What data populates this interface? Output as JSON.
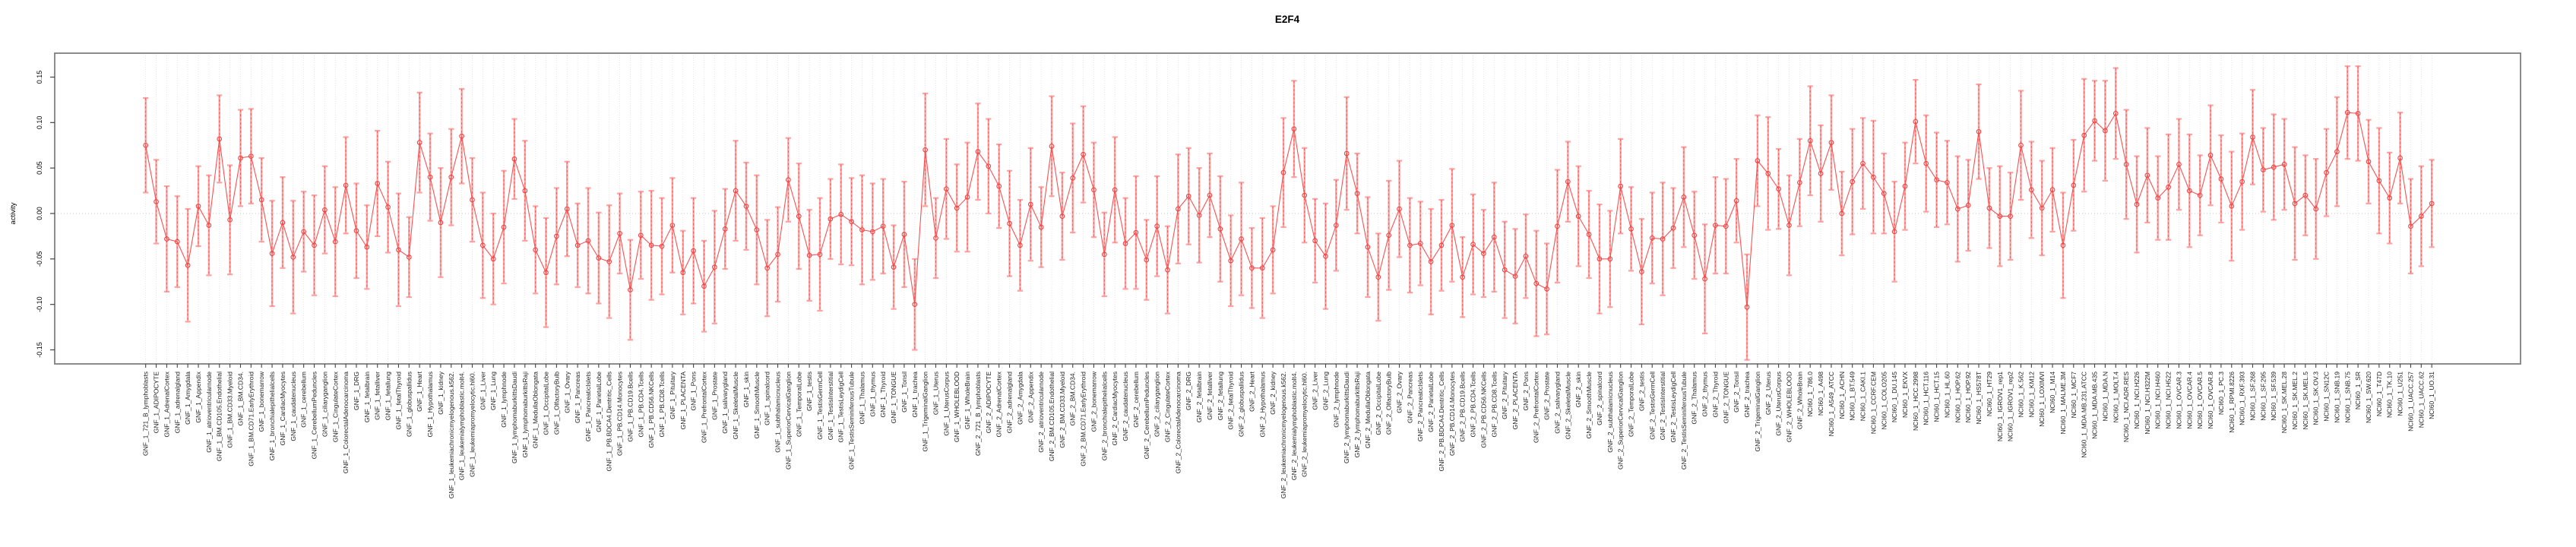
{
  "page": {
    "background": "#ffffff"
  },
  "chart_data": {
    "type": "line",
    "subtype": "line-with-error-bars",
    "title": "E2F4",
    "ylabel": "activity",
    "xlabel": "",
    "legend": "none",
    "grid": "vertical dotted gridline at every category; horizontal dotted line at 0",
    "ylim": [
      -0.166,
      0.174
    ],
    "yticks": [
      "-0.15",
      "-0.10",
      "-0.05",
      "0.00",
      "0.05",
      "0.10",
      "0.15"
    ],
    "ytick_values": [
      -0.15,
      -0.1,
      -0.05,
      0.0,
      0.05,
      0.1,
      0.15
    ],
    "colors": {
      "point": "#f24141",
      "line": "#f75252",
      "error_bar": "#ffa2a2",
      "grid": "#dddddd",
      "zero_line": "#c8c8c8",
      "box": "#7f7f7f",
      "tick": "#444444",
      "label": "#1f1f1f"
    },
    "categories": [
      "GNF_1_721_B_lymphoblasts",
      "GNF_1_ADIPOCYTE",
      "GNF_1_AdrenalCortex",
      "GNF_1_adrenalgland",
      "GNF_1_Amygdala",
      "GNF_1_Appendix",
      "GNF_1_atrioventricularnode",
      "GNF_1_BM.CD105.Endothelial",
      "GNF_1_BM.CD33.Myeloid",
      "GNF_1_BM.CD34.",
      "GNF_1_BM.CD71.EarlyErythroid",
      "GNF_1_bonemarrow",
      "GNF_1_bronchialepithelialcells",
      "GNF_1_CardiacMyocytes",
      "GNF_1_caudatenucleus",
      "GNF_1_cerebellum",
      "GNF_1_CerebellumPeduncles",
      "GNF_1_ciliaryganglion",
      "GNF_1_CingulateCortex",
      "GNF_1_ColorectalAdenocarcinoma",
      "GNF_1_DRG",
      "GNF_1_fetalbrain",
      "GNF_1_fetalliver",
      "GNF_1_fetallung",
      "GNF_1_fetalThyroid",
      "GNF_1_globuspallidus",
      "GNF_1_Heart",
      "GNF_1_Hypothalamus",
      "GNF_1_kidney",
      "GNF_1_leukemiachronicmyelogenous.k562.",
      "GNF_1_leukemialymphoblastic.molt4.",
      "GNF_1_leukemiapromyelocytic.hl60.",
      "GNF_1_Liver",
      "GNF_1_Lung",
      "GNF_1_lymphnode",
      "GNF_1_lymphomaburkittsDaudi",
      "GNF_1_lymphomaburkittsRaji",
      "GNF_1_MedullaOblongata",
      "GNF_1_OccipitalLobe",
      "GNF_1_OlfactoryBulb",
      "GNF_1_Ovary",
      "GNF_1_Pancreas",
      "GNF_1_PancreaticIslets",
      "GNF_1_ParietalLobe",
      "GNF_1_PB.BDCA4.Dentritic_Cells",
      "GNF_1_PB.CD14.Monocytes",
      "GNF_1_PB.CD19.Bcells",
      "GNF_1_PB.CD4.Tcells",
      "GNF_1_PB.CD56.NKCells",
      "GNF_1_PB.CD8.Tcells",
      "GNF_1_Pituitary",
      "GNF_1_PLACENTA",
      "GNF_1_Pons",
      "GNF_1_PrefrontalCortex",
      "GNF_1_Prostate",
      "GNF_1_salivarygland",
      "GNF_1_SkeletalMuscle",
      "GNF_1_skin",
      "GNF_1_SmoothMuscle",
      "GNF_1_spinalcord",
      "GNF_1_subthalamicnucleus",
      "GNF_1_SuperiorCervicalGanglion",
      "GNF_1_TemporalLobe",
      "GNF_1_testis",
      "GNF_1_TestisGermCell",
      "GNF_1_TestisInterstitial",
      "GNF_1_TestisLeydigCell",
      "GNF_1_TestisSeminiferousTubule",
      "GNF_1_Thalamus",
      "GNF_1_thymus",
      "GNF_1_Thyroid",
      "GNF_1_TONGUE",
      "GNF_1_Tonsil",
      "GNF_1_trachea",
      "GNF_1_TrigeminalGanglion",
      "GNF_1_Uterus",
      "GNF_1_UterusCorpus",
      "GNF_1_WHOLEBLOOD",
      "GNF_1_WholeBrain",
      "GNF_2_721_B_lymphoblasts",
      "GNF_2_ADIPOCYTE",
      "GNF_2_AdrenalCortex",
      "GNF_2_adrenalgland",
      "GNF_2_Amygdala",
      "GNF_2_Appendix",
      "GNF_2_atrioventricularnode",
      "GNF_2_BM.CD105.Endothelial",
      "GNF_2_BM.CD33.Myeloid",
      "GNF_2_BM.CD34.",
      "GNF_2_BM.CD71.EarlyErythroid",
      "GNF_2_bonemarrow",
      "GNF_2_bronchialepithelialcells",
      "GNF_2_CardiacMyocytes",
      "GNF_2_caudatenucleus",
      "GNF_2_cerebellum",
      "GNF_2_CerebellumPeduncles",
      "GNF_2_ciliaryganglion",
      "GNF_2_CingulateCortex",
      "GNF_2_ColorectalAdenocarcinoma",
      "GNF_2_DRG",
      "GNF_2_fetalbrain",
      "GNF_2_fetalliver",
      "GNF_2_fetallung",
      "GNF_2_fetalThyroid",
      "GNF_2_globuspallidus",
      "GNF_2_Heart",
      "GNF_2_Hypothalamus",
      "GNF_2_kidney",
      "GNF_2_leukemiachronicmyelogenous.k562.",
      "GNF_2_leukemialymphoblastic.molt4.",
      "GNF_2_leukemiapromyelocytic.hl60.",
      "GNF_2_Liver",
      "GNF_2_Lung",
      "GNF_2_lymphnode",
      "GNF_2_lymphomaburkittsDaudi",
      "GNF_2_lymphomaburkittsRaji",
      "GNF_2_MedullaOblongata",
      "GNF_2_OccipitalLobe",
      "GNF_2_OlfactoryBulb",
      "GNF_2_Ovary",
      "GNF_2_Pancreas",
      "GNF_2_PancreaticIslets",
      "GNF_2_ParietalLobe",
      "GNF_2_PB.BDCA4.Dentritic_Cells",
      "GNF_2_PB.CD14.Monocytes",
      "GNF_2_PB.CD19.Bcells",
      "GNF_2_PB.CD4.Tcells",
      "GNF_2_PB.CD56.NKCells",
      "GNF_2_PB.CD8.Tcells",
      "GNF_2_Pituitary",
      "GNF_2_PLACENTA",
      "GNF_2_Pons",
      "GNF_2_PrefrontalCortex",
      "GNF_2_Prostate",
      "GNF_2_salivarygland",
      "GNF_2_SkeletalMuscle",
      "GNF_2_skin",
      "GNF_2_SmoothMuscle",
      "GNF_2_spinalcord",
      "GNF_2_subthalamicnucleus",
      "GNF_2_SuperiorCervicalGanglion",
      "GNF_2_TemporalLobe",
      "GNF_2_testis",
      "GNF_2_TestisGermCell",
      "GNF_2_TestisInterstitial",
      "GNF_2_TestisLeydigCell",
      "GNF_2_TestisSeminiferousTubule",
      "GNF_2_Thalamus",
      "GNF_2_thymus",
      "GNF_2_Thyroid",
      "GNF_2_TONGUE",
      "GNF_2_Tonsil",
      "GNF_2_trachea",
      "GNF_2_TrigeminalGanglion",
      "GNF_2_Uterus",
      "GNF_2_UterusCorpus",
      "GNF_2_WHOLEBLOOD",
      "GNF_2_WholeBrain",
      "NCI60_1_786.0",
      "NCI60_1_A498",
      "NCI60_1_A549_ATCC",
      "NCI60_1_ACHN",
      "NCI60_1_BT.549",
      "NCI60_1_CAKI.1",
      "NCI60_1_CCRF.CEM",
      "NCI60_1_COLO205",
      "NCI60_1_DU.145",
      "NCI60_1_EKVX",
      "NCI60_1_HCC.2998",
      "NCI60_1_HCT.116",
      "NCI60_1_HCT.15",
      "NCI60_1_HL.60",
      "NCI60_1_HOP.62",
      "NCI60_1_HOP.92",
      "NCI60_1_HS578T",
      "NCI60_1_HT29",
      "NCI60_1_IGROV1_rep1",
      "NCI60_1_IGROV1_rep2",
      "NCI60_1_K.562",
      "NCI60_1_KM12",
      "NCI60_1_LOXIMVI",
      "NCI60_1_M14",
      "NCI60_1_MALME.3M",
      "NCI60_1_MCF7",
      "NCI60_1_MDA.MB.231.ATCC",
      "NCI60_1_MDA.MB.435",
      "NCI60_1_MDA.N",
      "NCI60_1_MOLT.4",
      "NCI60_1_NCI.ADR.RES",
      "NCI60_1_NCI.H226",
      "NCI60_1_NCI.H322M",
      "NCI60_1_NCI.H460",
      "NCI60_1_NCI.H522",
      "NCI60_1_OVCAR.3",
      "NCI60_1_OVCAR.4",
      "NCI60_1_OVCAR.5",
      "NCI60_1_OVCAR.8",
      "NCI60_1_PC.3",
      "NCI60_1_RPMI.8226",
      "NCI60_1_RXF.393",
      "NCI60_1_SF.268",
      "NCI60_1_SF.295",
      "NCI60_1_SF.539",
      "NCI60_1_SK.MEL.28",
      "NCI60_1_SK.MEL.2",
      "NCI60_1_SK.MEL.5",
      "NCI60_1_SK.OV.3",
      "NCI60_1_SN12C",
      "NCI60_1_SNB.19",
      "NCI60_1_SNB.75",
      "NCI60_1_SR",
      "NCI60_1_SW.620",
      "NCI60_1_T47D",
      "NCI60_1_TK.10",
      "NCI60_1_U251",
      "NCI60_1_UACC.257",
      "NCI60_1_UACC.62",
      "NCI60_1_UO.31"
    ],
    "values": [
      0.075,
      0.013,
      -0.028,
      -0.031,
      -0.057,
      0.008,
      -0.013,
      0.082,
      -0.007,
      0.061,
      0.063,
      0.015,
      -0.044,
      -0.01,
      -0.048,
      -0.02,
      -0.035,
      0.004,
      -0.031,
      0.031,
      -0.019,
      -0.037,
      0.033,
      0.007,
      -0.04,
      -0.048,
      0.078,
      0.04,
      -0.01,
      0.04,
      0.085,
      0.015,
      -0.035,
      -0.05,
      -0.015,
      0.06,
      0.025,
      -0.04,
      -0.065,
      -0.025,
      0.005,
      -0.035,
      -0.03,
      -0.049,
      -0.053,
      -0.022,
      -0.084,
      -0.024,
      -0.035,
      -0.036,
      -0.013,
      -0.065,
      -0.041,
      -0.08,
      -0.059,
      -0.017,
      0.025,
      0.008,
      -0.018,
      -0.06,
      -0.045,
      0.037,
      -0.003,
      -0.046,
      -0.045,
      -0.006,
      -0.001,
      -0.009,
      -0.018,
      -0.02,
      -0.014,
      -0.059,
      -0.023,
      -0.1,
      0.07,
      -0.027,
      0.027,
      0.006,
      0.018,
      0.068,
      0.052,
      0.03,
      -0.011,
      -0.035,
      0.01,
      -0.015,
      0.074,
      -0.003,
      0.039,
      0.065,
      0.026,
      -0.045,
      0.026,
      -0.033,
      -0.021,
      -0.051,
      -0.014,
      -0.062,
      0.005,
      0.019,
      -0.002,
      0.02,
      -0.017,
      -0.052,
      -0.028,
      -0.06,
      -0.06,
      -0.04,
      0.045,
      0.093,
      0.02,
      -0.03,
      -0.047,
      -0.013,
      0.066,
      0.022,
      -0.037,
      -0.07,
      -0.024,
      0.005,
      -0.035,
      -0.033,
      -0.053,
      -0.035,
      -0.013,
      -0.07,
      -0.034,
      -0.044,
      -0.026,
      -0.062,
      -0.069,
      -0.047,
      -0.077,
      -0.083,
      -0.014,
      0.035,
      -0.003,
      -0.023,
      -0.05,
      -0.05,
      0.03,
      -0.017,
      -0.064,
      -0.027,
      -0.028,
      -0.016,
      0.018,
      -0.024,
      -0.072,
      -0.013,
      -0.014,
      0.014,
      -0.103,
      0.058,
      0.044,
      0.027,
      -0.013,
      0.034,
      0.08,
      0.044,
      0.078,
      0.0,
      0.035,
      0.055,
      0.04,
      0.022,
      -0.02,
      0.03,
      0.101,
      0.055,
      0.037,
      0.034,
      0.005,
      0.009,
      0.09,
      0.006,
      -0.003,
      -0.003,
      0.075,
      0.026,
      0.006,
      0.026,
      -0.035,
      0.031,
      0.086,
      0.102,
      0.091,
      0.11,
      0.054,
      0.01,
      0.042,
      0.017,
      0.029,
      0.054,
      0.025,
      0.02,
      0.064,
      0.038,
      0.008,
      0.035,
      0.084,
      0.048,
      0.051,
      0.054,
      0.011,
      0.02,
      0.005,
      0.045,
      0.068,
      0.111,
      0.11,
      0.057,
      0.036,
      0.017,
      0.061,
      -0.014,
      -0.003,
      0.011
    ],
    "errors": [
      0.052,
      0.046,
      0.058,
      0.05,
      0.062,
      0.044,
      0.055,
      0.048,
      0.06,
      0.053,
      0.052,
      0.046,
      0.058,
      0.05,
      0.062,
      0.044,
      0.055,
      0.048,
      0.06,
      0.053,
      0.052,
      0.046,
      0.058,
      0.05,
      0.062,
      0.044,
      0.055,
      0.048,
      0.06,
      0.053,
      0.052,
      0.046,
      0.058,
      0.05,
      0.062,
      0.044,
      0.055,
      0.048,
      0.06,
      0.053,
      0.052,
      0.046,
      0.058,
      0.05,
      0.062,
      0.044,
      0.055,
      0.048,
      0.06,
      0.053,
      0.052,
      0.046,
      0.058,
      0.05,
      0.062,
      0.044,
      0.055,
      0.048,
      0.06,
      0.053,
      0.052,
      0.046,
      0.058,
      0.05,
      0.062,
      0.044,
      0.055,
      0.048,
      0.06,
      0.053,
      0.052,
      0.046,
      0.058,
      0.05,
      0.062,
      0.044,
      0.055,
      0.048,
      0.06,
      0.053,
      0.052,
      0.046,
      0.058,
      0.05,
      0.062,
      0.044,
      0.055,
      0.048,
      0.06,
      0.053,
      0.052,
      0.046,
      0.058,
      0.05,
      0.062,
      0.044,
      0.055,
      0.048,
      0.06,
      0.053,
      0.052,
      0.046,
      0.058,
      0.05,
      0.062,
      0.044,
      0.055,
      0.048,
      0.06,
      0.053,
      0.052,
      0.046,
      0.058,
      0.05,
      0.062,
      0.044,
      0.055,
      0.048,
      0.06,
      0.053,
      0.052,
      0.046,
      0.058,
      0.05,
      0.062,
      0.044,
      0.055,
      0.048,
      0.06,
      0.053,
      0.052,
      0.046,
      0.058,
      0.05,
      0.062,
      0.044,
      0.055,
      0.048,
      0.06,
      0.053,
      0.052,
      0.046,
      0.058,
      0.05,
      0.062,
      0.044,
      0.055,
      0.048,
      0.06,
      0.053,
      0.052,
      0.046,
      0.058,
      0.05,
      0.062,
      0.044,
      0.055,
      0.048,
      0.06,
      0.053,
      0.052,
      0.046,
      0.058,
      0.05,
      0.062,
      0.044,
      0.055,
      0.048,
      0.046,
      0.053,
      0.052,
      0.046,
      0.058,
      0.05,
      0.052,
      0.044,
      0.055,
      0.048,
      0.06,
      0.053,
      0.052,
      0.046,
      0.058,
      0.05,
      0.062,
      0.044,
      0.055,
      0.05,
      0.06,
      0.053,
      0.052,
      0.046,
      0.058,
      0.05,
      0.062,
      0.044,
      0.055,
      0.048,
      0.06,
      0.053,
      0.052,
      0.046,
      0.058,
      0.05,
      0.062,
      0.044,
      0.055,
      0.048,
      0.06,
      0.051,
      0.052,
      0.046,
      0.058,
      0.05,
      0.05,
      0.052,
      0.055,
      0.048
    ]
  }
}
